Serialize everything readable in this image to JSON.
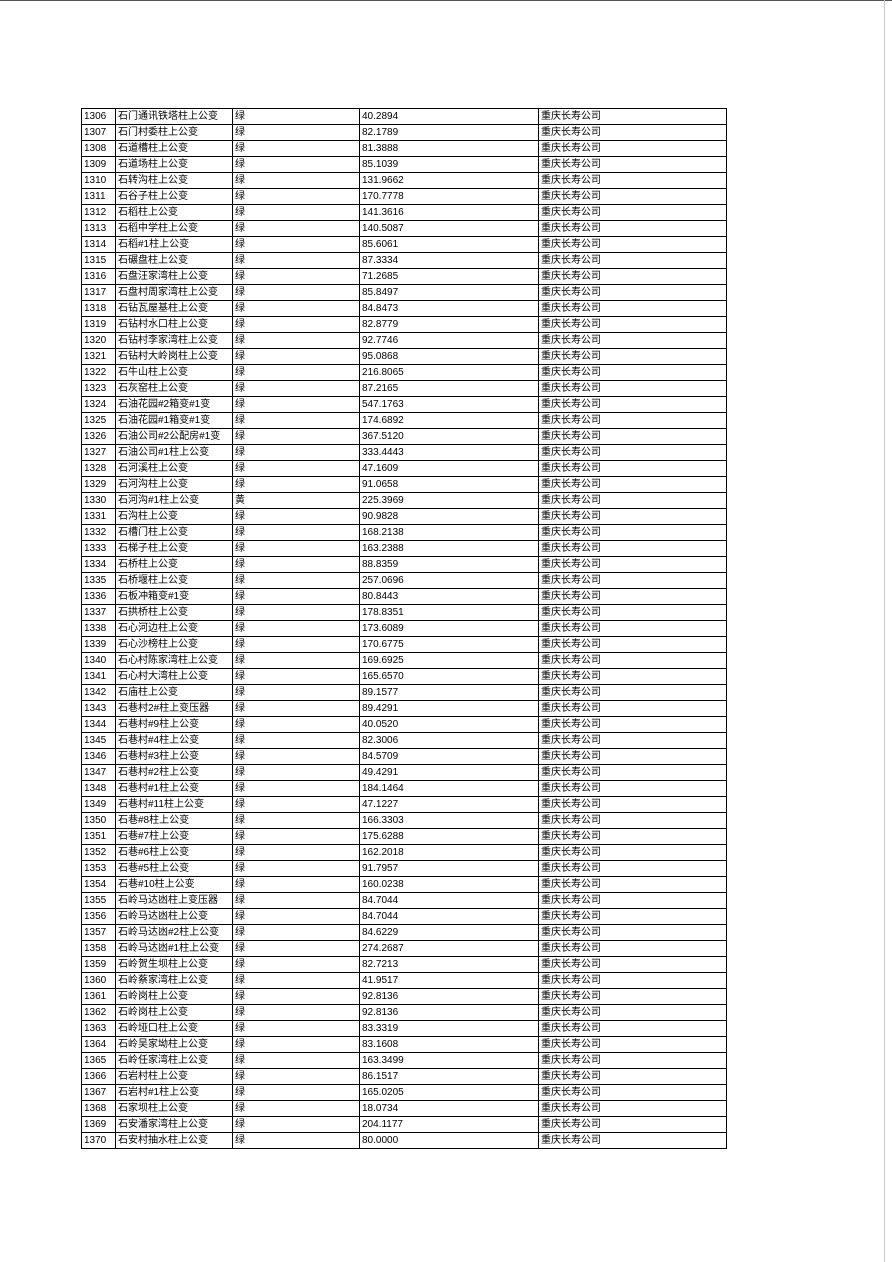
{
  "table": {
    "rows": [
      [
        "1306",
        "石门通讯铁塔柱上公变",
        "绿",
        "40.2894",
        "重庆长寿公司"
      ],
      [
        "1307",
        "石门村委柱上公变",
        "绿",
        "82.1789",
        "重庆长寿公司"
      ],
      [
        "1308",
        "石道槽柱上公变",
        "绿",
        "81.3888",
        "重庆长寿公司"
      ],
      [
        "1309",
        "石道场柱上公变",
        "绿",
        "85.1039",
        "重庆长寿公司"
      ],
      [
        "1310",
        "石转沟柱上公变",
        "绿",
        "131.9662",
        "重庆长寿公司"
      ],
      [
        "1311",
        "石谷子柱上公变",
        "绿",
        "170.7778",
        "重庆长寿公司"
      ],
      [
        "1312",
        "石稻柱上公变",
        "绿",
        "141.3616",
        "重庆长寿公司"
      ],
      [
        "1313",
        "石稻中学柱上公变",
        "绿",
        "140.5087",
        "重庆长寿公司"
      ],
      [
        "1314",
        "石稻#1柱上公变",
        "绿",
        "85.6061",
        "重庆长寿公司"
      ],
      [
        "1315",
        "石碾盘柱上公变",
        "绿",
        "87.3334",
        "重庆长寿公司"
      ],
      [
        "1316",
        "石盘汪家湾柱上公变",
        "绿",
        "71.2685",
        "重庆长寿公司"
      ],
      [
        "1317",
        "石盘村周家湾柱上公变",
        "绿",
        "85.8497",
        "重庆长寿公司"
      ],
      [
        "1318",
        "石钻瓦屋基柱上公变",
        "绿",
        "84.8473",
        "重庆长寿公司"
      ],
      [
        "1319",
        "石钻村水口柱上公变",
        "绿",
        "82.8779",
        "重庆长寿公司"
      ],
      [
        "1320",
        "石钻村李家湾柱上公变",
        "绿",
        "92.7746",
        "重庆长寿公司"
      ],
      [
        "1321",
        "石钻村大岭岗柱上公变",
        "绿",
        "95.0868",
        "重庆长寿公司"
      ],
      [
        "1322",
        "石牛山柱上公变",
        "绿",
        "216.8065",
        "重庆长寿公司"
      ],
      [
        "1323",
        "石灰窑柱上公变",
        "绿",
        "87.2165",
        "重庆长寿公司"
      ],
      [
        "1324",
        "石油花园#2箱变#1变",
        "绿",
        "547.1763",
        "重庆长寿公司"
      ],
      [
        "1325",
        "石油花园#1箱变#1变",
        "绿",
        "174.6892",
        "重庆长寿公司"
      ],
      [
        "1326",
        "石油公司#2公配房#1变",
        "绿",
        "367.5120",
        "重庆长寿公司"
      ],
      [
        "1327",
        "石油公司#1柱上公变",
        "绿",
        "333.4443",
        "重庆长寿公司"
      ],
      [
        "1328",
        "石河溪柱上公变",
        "绿",
        "47.1609",
        "重庆长寿公司"
      ],
      [
        "1329",
        "石河沟柱上公变",
        "绿",
        "91.0658",
        "重庆长寿公司"
      ],
      [
        "1330",
        "石河沟#1柱上公变",
        "黄",
        "225.3969",
        "重庆长寿公司"
      ],
      [
        "1331",
        "石沟柱上公变",
        "绿",
        "90.9828",
        "重庆长寿公司"
      ],
      [
        "1332",
        "石槽门柱上公变",
        "绿",
        "168.2138",
        "重庆长寿公司"
      ],
      [
        "1333",
        "石梯子柱上公变",
        "绿",
        "163.2388",
        "重庆长寿公司"
      ],
      [
        "1334",
        "石桥柱上公变",
        "绿",
        "88.8359",
        "重庆长寿公司"
      ],
      [
        "1335",
        "石桥堰柱上公变",
        "绿",
        "257.0696",
        "重庆长寿公司"
      ],
      [
        "1336",
        "石板冲箱变#1变",
        "绿",
        "80.8443",
        "重庆长寿公司"
      ],
      [
        "1337",
        "石拱桥柱上公变",
        "绿",
        "178.8351",
        "重庆长寿公司"
      ],
      [
        "1338",
        "石心河边柱上公变",
        "绿",
        "173.6089",
        "重庆长寿公司"
      ],
      [
        "1339",
        "石心沙榜柱上公变",
        "绿",
        "170.6775",
        "重庆长寿公司"
      ],
      [
        "1340",
        "石心村陈家湾柱上公变",
        "绿",
        "169.6925",
        "重庆长寿公司"
      ],
      [
        "1341",
        "石心村大湾柱上公变",
        "绿",
        "165.6570",
        "重庆长寿公司"
      ],
      [
        "1342",
        "石庙柱上公变",
        "绿",
        "89.1577",
        "重庆长寿公司"
      ],
      [
        "1343",
        "石巷村2#柱上变压器",
        "绿",
        "89.4291",
        "重庆长寿公司"
      ],
      [
        "1344",
        "石巷村#9柱上公变",
        "绿",
        "40.0520",
        "重庆长寿公司"
      ],
      [
        "1345",
        "石巷村#4柱上公变",
        "绿",
        "82.3006",
        "重庆长寿公司"
      ],
      [
        "1346",
        "石巷村#3柱上公变",
        "绿",
        "84.5709",
        "重庆长寿公司"
      ],
      [
        "1347",
        "石巷村#2柱上公变",
        "绿",
        "49.4291",
        "重庆长寿公司"
      ],
      [
        "1348",
        "石巷村#1柱上公变",
        "绿",
        "184.1464",
        "重庆长寿公司"
      ],
      [
        "1349",
        "石巷村#11柱上公变",
        "绿",
        "47.1227",
        "重庆长寿公司"
      ],
      [
        "1350",
        "石巷#8柱上公变",
        "绿",
        "166.3303",
        "重庆长寿公司"
      ],
      [
        "1351",
        "石巷#7柱上公变",
        "绿",
        "175.6288",
        "重庆长寿公司"
      ],
      [
        "1352",
        "石巷#6柱上公变",
        "绿",
        "162.2018",
        "重庆长寿公司"
      ],
      [
        "1353",
        "石巷#5柱上公变",
        "绿",
        "91.7957",
        "重庆长寿公司"
      ],
      [
        "1354",
        "石巷#10柱上公变",
        "绿",
        "160.0238",
        "重庆长寿公司"
      ],
      [
        "1355",
        "石岭马达凼柱上变压器",
        "绿",
        "84.7044",
        "重庆长寿公司"
      ],
      [
        "1356",
        "石岭马达凼柱上公变",
        "绿",
        "84.7044",
        "重庆长寿公司"
      ],
      [
        "1357",
        "石岭马达凼#2柱上公变",
        "绿",
        "84.6229",
        "重庆长寿公司"
      ],
      [
        "1358",
        "石岭马达凼#1柱上公变",
        "绿",
        "274.2687",
        "重庆长寿公司"
      ],
      [
        "1359",
        "石岭贺生坝柱上公变",
        "绿",
        "82.7213",
        "重庆长寿公司"
      ],
      [
        "1360",
        "石岭蔡家湾柱上公变",
        "绿",
        "41.9517",
        "重庆长寿公司"
      ],
      [
        "1361",
        "石岭岗柱上公变",
        "绿",
        "92.8136",
        "重庆长寿公司"
      ],
      [
        "1362",
        "石岭岗柱上公变",
        "绿",
        "92.8136",
        "重庆长寿公司"
      ],
      [
        "1363",
        "石岭垭口柱上公变",
        "绿",
        "83.3319",
        "重庆长寿公司"
      ],
      [
        "1364",
        "石岭吴家坳柱上公变",
        "绿",
        "83.1608",
        "重庆长寿公司"
      ],
      [
        "1365",
        "石岭任家湾柱上公变",
        "绿",
        "163.3499",
        "重庆长寿公司"
      ],
      [
        "1366",
        "石岩村柱上公变",
        "绿",
        "86.1517",
        "重庆长寿公司"
      ],
      [
        "1367",
        "石岩村#1柱上公变",
        "绿",
        "165.0205",
        "重庆长寿公司"
      ],
      [
        "1368",
        "石家坝柱上公变",
        "绿",
        "18.0734",
        "重庆长寿公司"
      ],
      [
        "1369",
        "石安潘家湾柱上公变",
        "绿",
        "204.1177",
        "重庆长寿公司"
      ],
      [
        "1370",
        "石安村抽水柱上公变",
        "绿",
        "80.0000",
        "重庆长寿公司"
      ]
    ]
  }
}
